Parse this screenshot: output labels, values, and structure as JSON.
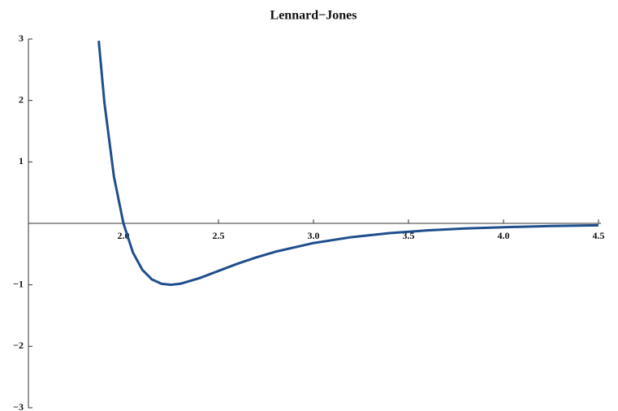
{
  "chart_data": {
    "type": "line",
    "title": "Lennard−Jones",
    "x": [
      1.87,
      1.9,
      1.95,
      2.0,
      2.05,
      2.1,
      2.15,
      2.2,
      2.25,
      2.3,
      2.4,
      2.5,
      2.6,
      2.7,
      2.8,
      3.0,
      3.2,
      3.4,
      3.6,
      3.8,
      4.0,
      4.25,
      4.5
    ],
    "series": [
      {
        "color": "#1f4e8c",
        "values": [
          2.97,
          1.96,
          0.76,
          0,
          -0.475,
          -0.758,
          -0.912,
          -0.983,
          -1.0,
          -0.982,
          -0.891,
          -0.774,
          -0.657,
          -0.552,
          -0.461,
          -0.32,
          -0.224,
          -0.159,
          -0.114,
          -0.083,
          -0.062,
          -0.043,
          -0.031
        ]
      }
    ],
    "xlim": [
      1.5,
      4.5
    ],
    "xticks": [
      {
        "value": 2,
        "label": "2.0"
      },
      {
        "value": 2.5,
        "label": "2.5"
      },
      {
        "value": 3,
        "label": "3.0"
      },
      {
        "value": 3.5,
        "label": "3.5"
      },
      {
        "value": 4,
        "label": "4.0"
      },
      {
        "value": 4.5,
        "label": "4.5"
      }
    ],
    "ylim": [
      -3,
      3
    ],
    "yticks": [
      {
        "value": -3,
        "label": "−3"
      },
      {
        "value": -2,
        "label": "−2"
      },
      {
        "value": -1,
        "label": "−1"
      },
      1,
      2,
      3
    ],
    "grid": false
  }
}
